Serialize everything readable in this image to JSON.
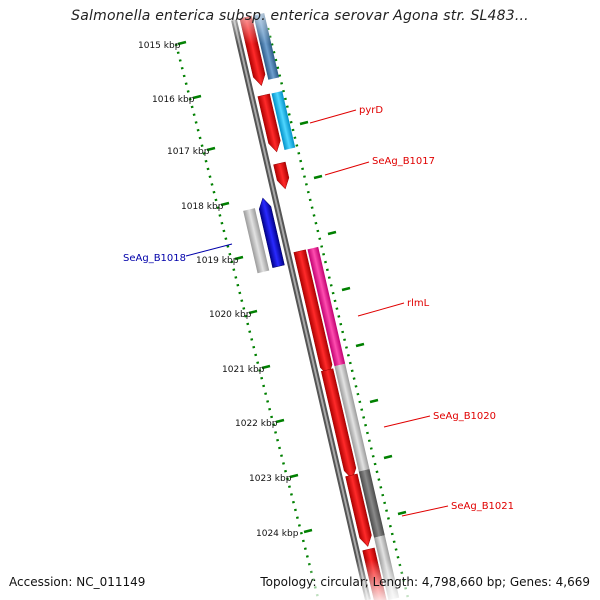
{
  "header": {
    "title": "Salmonella enterica subsp. enterica serovar Agona str. SL483..."
  },
  "footer": {
    "accession": "Accession: NC_011149",
    "summary": "Topology: circular; Length: 4,798,660 bp; Genes: 4,669"
  },
  "scale": {
    "ticks": [
      "1015 kbp",
      "1016 kbp",
      "1017 kbp",
      "1018 kbp",
      "1019 kbp",
      "1020 kbp",
      "1021 kbp",
      "1022 kbp",
      "1023 kbp",
      "1024 kbp"
    ]
  },
  "genes": [
    {
      "label": "pyrD",
      "color": "#e00000"
    },
    {
      "label": "SeAg_B1017",
      "color": "#e00000"
    },
    {
      "label": "SeAg_B1018",
      "color": "#0000aa"
    },
    {
      "label": "rlmL",
      "color": "#e00000"
    },
    {
      "label": "SeAg_B1020",
      "color": "#e00000"
    },
    {
      "label": "SeAg_B1021",
      "color": "#e00000"
    }
  ],
  "colors": {
    "backbone": "#888888",
    "tick": "#008000",
    "cds_red": "#ff0000",
    "cds_blue": "#0000ff",
    "cds_cyan": "#00bfff",
    "cds_steel": "#4682b4",
    "cds_magenta": "#ff1493",
    "cds_lightgray": "#c0c0c0",
    "cds_darkgray": "#707070"
  }
}
